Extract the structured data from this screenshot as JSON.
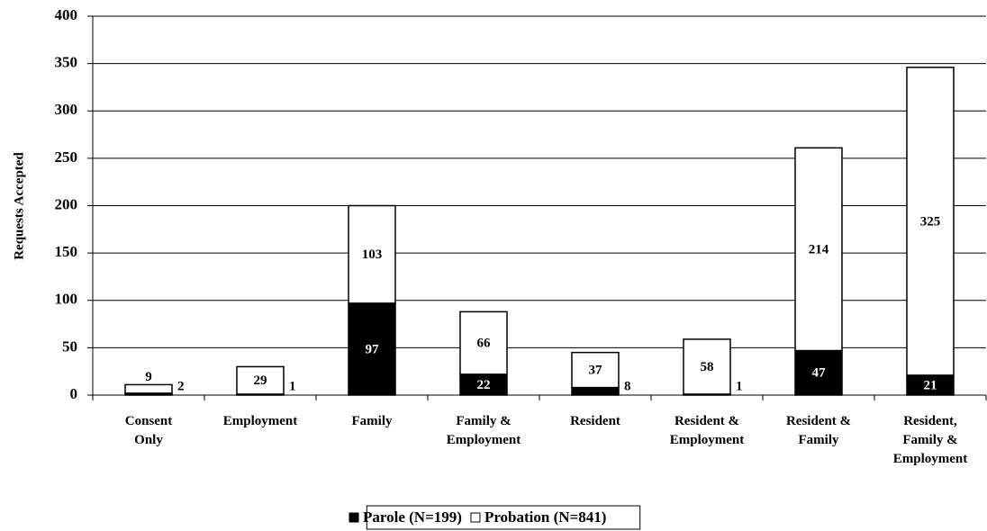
{
  "chart_data": {
    "type": "stacked_bar",
    "ylabel": "Requests Accepted",
    "categories": [
      "Consent\nOnly",
      "Employment",
      "Family",
      "Family &\nEmployment",
      "Resident",
      "Resident &\nEmployment",
      "Resident &\nFamily",
      "Resident,\nFamily &\nEmployment"
    ],
    "series": [
      {
        "name": "Parole (N=199)",
        "color": "#000000",
        "values": [
          2,
          1,
          97,
          22,
          8,
          1,
          47,
          21
        ]
      },
      {
        "name": "Probation (N=841)",
        "color": "#ffffff",
        "values": [
          9,
          29,
          103,
          66,
          37,
          58,
          214,
          325
        ]
      }
    ],
    "ylim": [
      0,
      400
    ],
    "yticks": [
      0,
      50,
      100,
      150,
      200,
      250,
      300,
      350,
      400
    ],
    "grid": true,
    "legend": "bottom"
  }
}
